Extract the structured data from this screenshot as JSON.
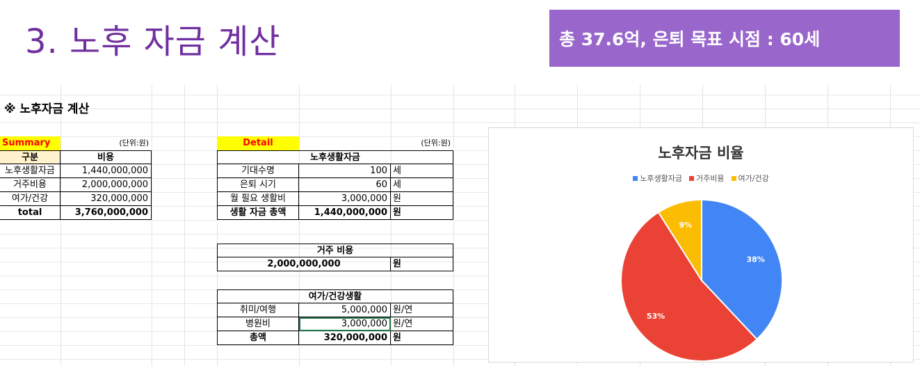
{
  "slide": {
    "title": "3. 노후 자금 계산",
    "banner": "총 37.6억, 은퇴 목표 시점 : 60세"
  },
  "sheet": {
    "section_title": "※ 노후자금 계산",
    "summary": {
      "label": "Summary",
      "unit": "(단위:원)",
      "headers": [
        "구분",
        "비용"
      ],
      "rows": [
        {
          "name": "노후생활자금",
          "value": "1,440,000,000"
        },
        {
          "name": "거주비용",
          "value": "2,000,000,000"
        },
        {
          "name": "여가/건강",
          "value": "320,000,000"
        },
        {
          "name": "total",
          "value": "3,760,000,000"
        }
      ]
    },
    "detail": {
      "label": "Detail",
      "unit": "(단위:원)",
      "living": {
        "title": "노후생활자금",
        "rows": [
          {
            "name": "기대수명",
            "value": "100",
            "unit": "세"
          },
          {
            "name": "은퇴 시기",
            "value": "60",
            "unit": "세"
          },
          {
            "name": "월 필요 생활비",
            "value": "3,000,000",
            "unit": "원"
          },
          {
            "name": "생활 자금 총액",
            "value": "1,440,000,000",
            "unit": "원"
          }
        ]
      },
      "housing": {
        "title": "거주 비용",
        "value": "2,000,000,000",
        "unit": "원"
      },
      "leisure": {
        "title": "여가/건강생활",
        "rows": [
          {
            "name": "취미/여행",
            "value": "5,000,000",
            "unit": "원/연"
          },
          {
            "name": "병원비",
            "value": "3,000,000",
            "unit": "원/연"
          },
          {
            "name": "총액",
            "value": "320,000,000",
            "unit": "원"
          }
        ]
      }
    }
  },
  "chart_data": {
    "type": "pie",
    "title": "노후자금 비율",
    "legend_position": "top",
    "categories": [
      "노후생활자금",
      "거주비용",
      "여가/건강"
    ],
    "values": [
      38,
      53,
      9
    ],
    "labels": [
      "38%",
      "53%",
      "9%"
    ],
    "colors": [
      "#4285F4",
      "#EA4335",
      "#FBBC04"
    ]
  }
}
